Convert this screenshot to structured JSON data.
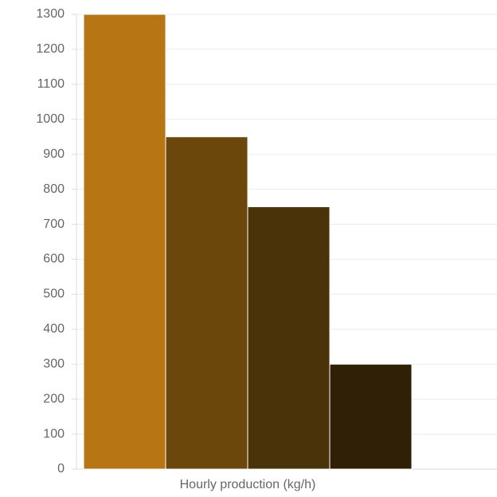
{
  "chart_data": {
    "type": "bar",
    "categories": [
      "Hourly production (kg/h)"
    ],
    "series": [
      {
        "color": "#b87513",
        "values": [
          1300
        ]
      },
      {
        "color": "#6b470c",
        "values": [
          950
        ]
      },
      {
        "color": "#4a3209",
        "values": [
          750
        ]
      },
      {
        "color": "#302106",
        "values": [
          300
        ]
      }
    ],
    "ylim": [
      0,
      1300
    ],
    "yticks": [
      0,
      100,
      200,
      300,
      400,
      500,
      600,
      700,
      800,
      900,
      1000,
      1100,
      1200,
      1300
    ],
    "grid": true
  }
}
